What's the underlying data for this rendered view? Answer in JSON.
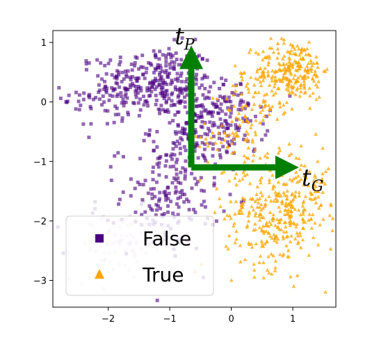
{
  "chart_data": {
    "type": "scatter",
    "title": "",
    "xlabel": "",
    "ylabel": "",
    "xlim": [
      -2.9,
      1.7
    ],
    "ylim": [
      -3.45,
      1.2
    ],
    "xticks": [
      -2,
      -1,
      0,
      1
    ],
    "yticks": [
      1,
      0,
      -1,
      -2,
      -3
    ],
    "xtick_labels": [
      "−2",
      "−1",
      "0",
      "1"
    ],
    "ytick_labels": [
      "1",
      "0",
      "−1",
      "−2",
      "−3"
    ],
    "grid": false,
    "legend": {
      "position": "lower-left",
      "entries": [
        "False",
        "True"
      ]
    },
    "series": [
      {
        "name": "False",
        "marker": "square",
        "color": "#4b0082",
        "clusters": [
          {
            "cx": -1.2,
            "cy": 0.35,
            "sx": 0.45,
            "sy": 0.3,
            "n": 260
          },
          {
            "cx": -2.05,
            "cy": 0.1,
            "sx": 0.35,
            "sy": 0.3,
            "n": 70
          },
          {
            "cx": -0.6,
            "cy": -0.4,
            "sx": 0.35,
            "sy": 0.35,
            "n": 140
          },
          {
            "cx": -0.1,
            "cy": -0.3,
            "sx": 0.35,
            "sy": 0.3,
            "n": 110
          },
          {
            "cx": -1.0,
            "cy": -1.6,
            "sx": 0.4,
            "sy": 0.45,
            "n": 170
          },
          {
            "cx": -1.8,
            "cy": -2.4,
            "sx": 0.4,
            "sy": 0.3,
            "n": 90,
            "faded": true
          }
        ]
      },
      {
        "name": "True",
        "marker": "triangle",
        "color": "#ffa500",
        "clusters": [
          {
            "cx": 1.0,
            "cy": 0.55,
            "sx": 0.3,
            "sy": 0.25,
            "n": 230
          },
          {
            "cx": 0.5,
            "cy": 0.1,
            "sx": 0.3,
            "sy": 0.25,
            "n": 80
          },
          {
            "cx": 0.1,
            "cy": -0.6,
            "sx": 0.3,
            "sy": 0.3,
            "n": 70
          },
          {
            "cx": 0.7,
            "cy": -1.9,
            "sx": 0.4,
            "sy": 0.45,
            "n": 300
          },
          {
            "cx": 1.2,
            "cy": -1.5,
            "sx": 0.3,
            "sy": 0.4,
            "n": 80
          }
        ]
      }
    ],
    "annotations": {
      "origin": [
        -0.65,
        -1.1
      ],
      "arrow_color": "#008000",
      "vectors": [
        {
          "label": "t",
          "subscript": "P",
          "dx": 0,
          "dy": 2.05
        },
        {
          "label": "t",
          "subscript": "G",
          "dx": 1.75,
          "dy": 0
        }
      ]
    }
  }
}
